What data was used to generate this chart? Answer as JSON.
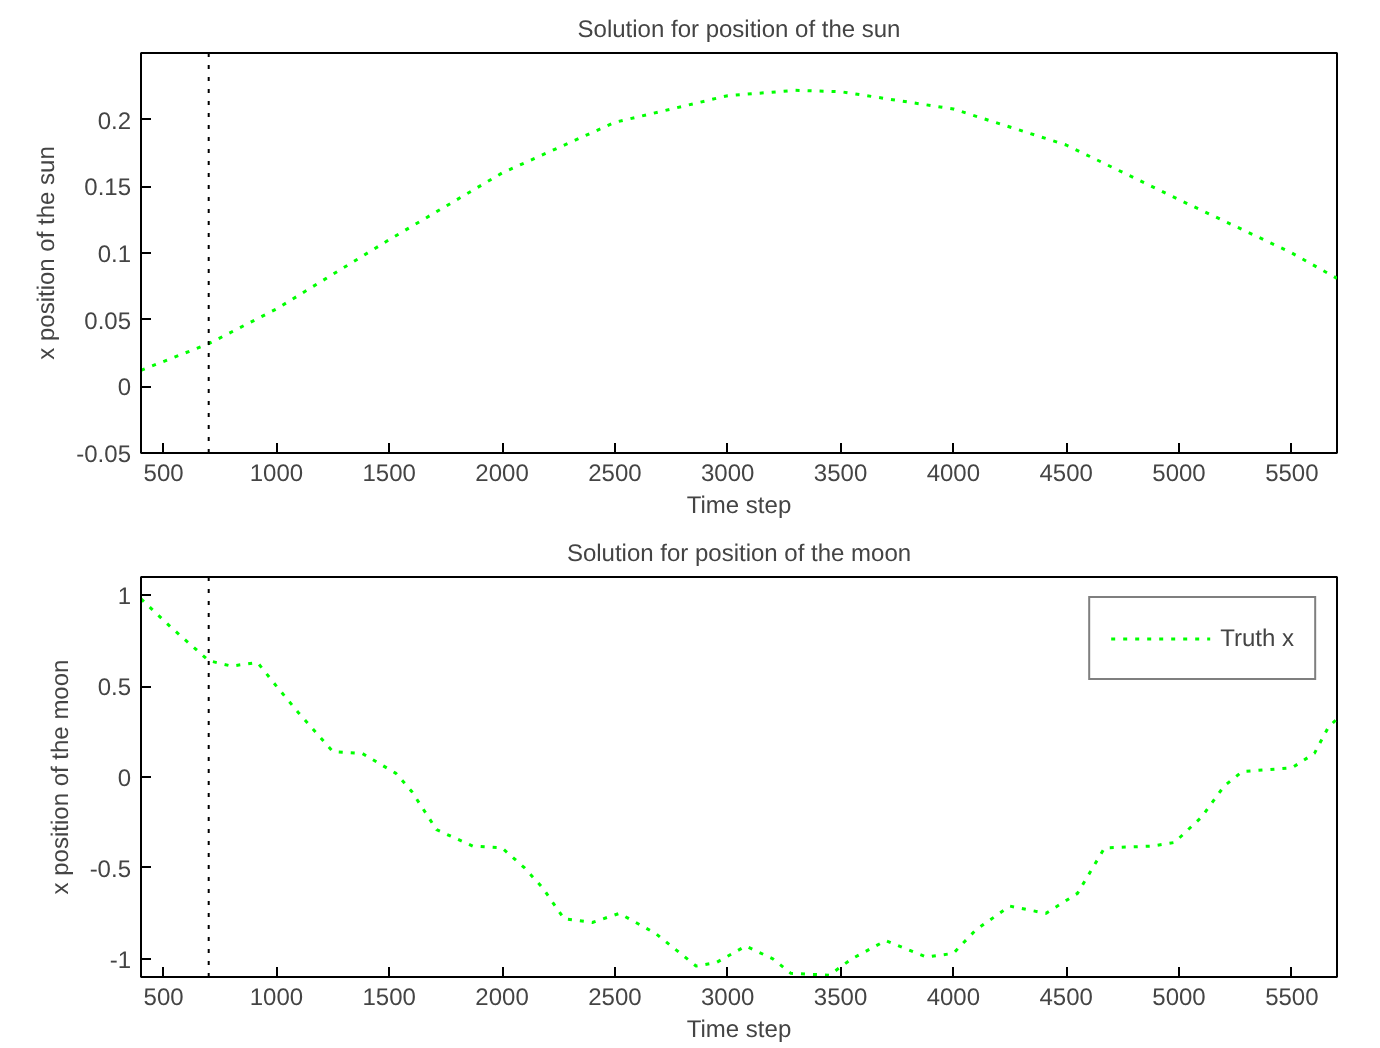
{
  "chart_data": [
    {
      "type": "line",
      "title": "Solution for position of the sun",
      "xlabel": "Time step",
      "ylabel": "x position of the sun",
      "xlim": [
        400,
        5700
      ],
      "xticks": [
        500,
        1000,
        1500,
        2000,
        2500,
        3000,
        3500,
        4000,
        4500,
        5000,
        5500
      ],
      "ylim": [
        -0.05,
        0.25
      ],
      "yticks": [
        -0.05,
        0,
        0.05,
        0.1,
        0.15,
        0.2
      ],
      "grid": false,
      "line_style": "dotted",
      "marker": "none",
      "legend": false,
      "ref_lines": [
        {
          "axis": "x",
          "value": 700,
          "color": "#000000",
          "line_style": "dotted"
        }
      ],
      "series": [
        {
          "color": "#00ff00",
          "x": [
            400,
            700,
            1000,
            1500,
            2000,
            2500,
            3000,
            3300,
            3500,
            4000,
            4500,
            5000,
            5500,
            5700
          ],
          "values": [
            0.012,
            0.032,
            0.058,
            0.11,
            0.16,
            0.198,
            0.218,
            0.222,
            0.221,
            0.208,
            0.181,
            0.14,
            0.1,
            0.081
          ]
        }
      ]
    },
    {
      "type": "line",
      "title": "Solution for position of the moon",
      "xlabel": "Time step",
      "ylabel": "x position of the moon",
      "xlim": [
        400,
        5700
      ],
      "xticks": [
        500,
        1000,
        1500,
        2000,
        2500,
        3000,
        3500,
        4000,
        4500,
        5000,
        5500
      ],
      "ylim": [
        -1.1,
        1.1
      ],
      "yticks": [
        -1,
        -0.5,
        0,
        0.5,
        1
      ],
      "grid": false,
      "line_style": "dotted",
      "marker": "none",
      "legend": "top right",
      "ref_lines": [
        {
          "axis": "x",
          "value": 700,
          "color": "#000000",
          "line_style": "dotted"
        }
      ],
      "series": [
        {
          "name": "Truth x",
          "color": "#00ff00",
          "x": [
            400,
            536,
            700,
            800,
            916,
            1000,
            1100,
            1250,
            1380,
            1530,
            1600,
            1710,
            1870,
            2000,
            2100,
            2180,
            2275,
            2400,
            2520,
            2680,
            2860,
            2950,
            3080,
            3200,
            3280,
            3450,
            3550,
            3700,
            3880,
            4000,
            4100,
            4250,
            4410,
            4550,
            4670,
            4880,
            4980,
            5100,
            5200,
            5280,
            5500,
            5600,
            5660,
            5700
          ],
          "values": [
            0.98,
            0.82,
            0.64,
            0.61,
            0.63,
            0.5,
            0.35,
            0.14,
            0.13,
            0.02,
            -0.08,
            -0.29,
            -0.38,
            -0.39,
            -0.5,
            -0.61,
            -0.78,
            -0.8,
            -0.75,
            -0.86,
            -1.04,
            -1.02,
            -0.93,
            -1.0,
            -1.08,
            -1.09,
            -1.0,
            -0.9,
            -0.99,
            -0.97,
            -0.84,
            -0.71,
            -0.75,
            -0.64,
            -0.39,
            -0.38,
            -0.36,
            -0.22,
            -0.05,
            0.03,
            0.05,
            0.13,
            0.27,
            0.32
          ]
        }
      ]
    }
  ]
}
